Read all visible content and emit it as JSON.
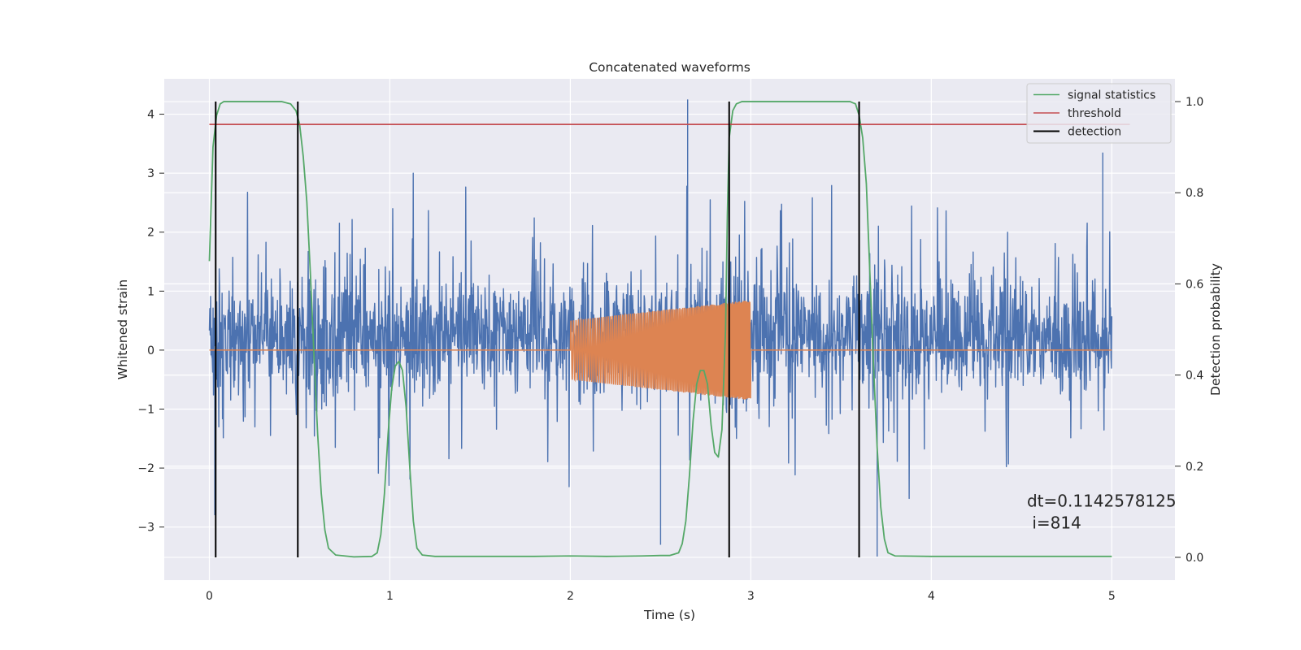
{
  "chart_data": {
    "type": "line",
    "title": "Concatenated waveforms",
    "xlabel": "Time (s)",
    "ylabel": "Whitened strain",
    "y2label": "Detection probability",
    "xlim": [
      -0.25,
      5.35
    ],
    "ylim": [
      -3.9,
      4.6
    ],
    "y2lim": [
      -0.05,
      1.05
    ],
    "x_ticks": [
      0,
      1,
      2,
      3,
      4,
      5
    ],
    "x_tick_labels": [
      "0",
      "1",
      "2",
      "3",
      "4",
      "5"
    ],
    "y_ticks": [
      -3,
      -2,
      -1,
      0,
      1,
      2,
      3,
      4
    ],
    "y_tick_labels": [
      "−3",
      "−2",
      "−1",
      "0",
      "1",
      "2",
      "3",
      "4"
    ],
    "y2_ticks": [
      0.0,
      0.2,
      0.4,
      0.6,
      0.8,
      1.0
    ],
    "y2_tick_labels": [
      "0.0",
      "0.2",
      "0.4",
      "0.6",
      "0.8",
      "1.0"
    ],
    "grid": true,
    "legend_placement": "top-right",
    "legend": [
      {
        "label": "signal statistics",
        "color": "#55a868"
      },
      {
        "label": "threshold",
        "color": "#c44e52"
      },
      {
        "label": "detection",
        "color": "#000000"
      }
    ],
    "series": [
      {
        "name": "",
        "axis": "left",
        "kind": "noise",
        "color": "#4c72b0",
        "x_range": [
          0,
          5
        ],
        "typical_range": [
          -1.5,
          2.0
        ],
        "extremes": [
          [
            0.03,
            -2.8
          ],
          [
            2.65,
            4.25
          ],
          [
            3.7,
            -3.5
          ],
          [
            4.95,
            3.35
          ],
          [
            2.5,
            -3.3
          ]
        ]
      },
      {
        "name": "",
        "axis": "left",
        "kind": "chirp",
        "color": "#dd8452",
        "x_range": [
          0,
          5
        ],
        "baseline": 0,
        "chirp_x_range": [
          2.0,
          3.0
        ],
        "amplitude_start": 0.5,
        "amplitude_end": 0.85
      },
      {
        "name": "signal statistics",
        "axis": "right",
        "color": "#55a868",
        "x": [
          0,
          0.02,
          0.04,
          0.06,
          0.08,
          0.1,
          0.2,
          0.3,
          0.4,
          0.45,
          0.48,
          0.5,
          0.52,
          0.54,
          0.56,
          0.58,
          0.6,
          0.62,
          0.64,
          0.66,
          0.7,
          0.8,
          0.9,
          0.93,
          0.95,
          0.97,
          0.99,
          1.01,
          1.03,
          1.05,
          1.07,
          1.09,
          1.11,
          1.13,
          1.15,
          1.18,
          1.25,
          1.5,
          1.8,
          2.0,
          2.2,
          2.4,
          2.5,
          2.55,
          2.6,
          2.62,
          2.64,
          2.66,
          2.68,
          2.7,
          2.72,
          2.74,
          2.76,
          2.78,
          2.8,
          2.82,
          2.84,
          2.86,
          2.87,
          2.88,
          2.9,
          2.92,
          2.95,
          3.0,
          3.3,
          3.55,
          3.58,
          3.6,
          3.62,
          3.64,
          3.66,
          3.68,
          3.7,
          3.72,
          3.74,
          3.76,
          3.8,
          4.0,
          4.5,
          5.0
        ],
        "values": [
          0.65,
          0.9,
          0.97,
          0.995,
          1.0,
          1.0,
          1.0,
          1.0,
          1.0,
          0.995,
          0.98,
          0.95,
          0.88,
          0.78,
          0.62,
          0.44,
          0.27,
          0.14,
          0.06,
          0.02,
          0.005,
          0.001,
          0.002,
          0.01,
          0.05,
          0.14,
          0.27,
          0.37,
          0.42,
          0.43,
          0.41,
          0.33,
          0.2,
          0.08,
          0.02,
          0.005,
          0.002,
          0.002,
          0.002,
          0.003,
          0.002,
          0.003,
          0.004,
          0.004,
          0.01,
          0.03,
          0.08,
          0.18,
          0.3,
          0.38,
          0.41,
          0.41,
          0.38,
          0.29,
          0.23,
          0.22,
          0.28,
          0.5,
          0.75,
          0.92,
          0.98,
          0.995,
          1.0,
          1.0,
          1.0,
          1.0,
          0.995,
          0.97,
          0.92,
          0.82,
          0.62,
          0.42,
          0.24,
          0.11,
          0.04,
          0.01,
          0.003,
          0.002,
          0.002,
          0.002
        ]
      },
      {
        "name": "threshold",
        "axis": "right",
        "color": "#c44e52",
        "x": [
          0,
          5.1
        ],
        "values": [
          0.95,
          0.95
        ]
      }
    ],
    "detections": {
      "name": "detection",
      "color": "#000000",
      "x": [
        0.035,
        0.49,
        2.88,
        3.6
      ],
      "y2_range": [
        0,
        1
      ]
    },
    "annotation": {
      "line1": "dt=0.1142578125",
      "line2": " i=814",
      "x": 4.53,
      "y": -2.65
    }
  }
}
